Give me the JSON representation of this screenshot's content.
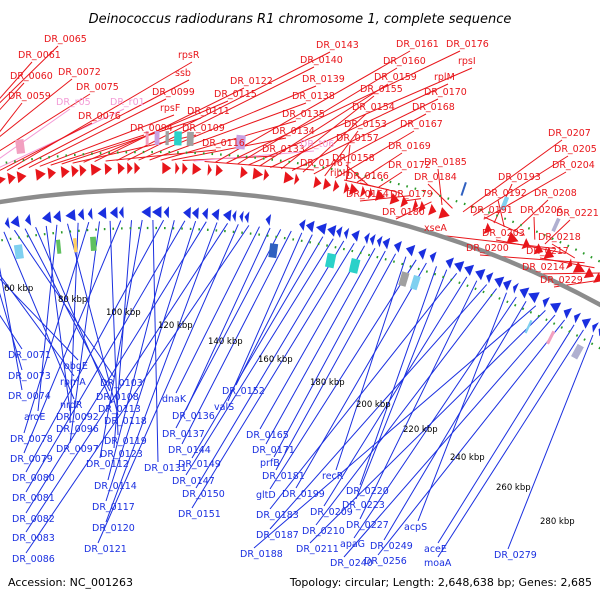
{
  "header": {
    "title": "Deinococcus radiodurans R1 chromosome 1, complete sequence"
  },
  "footer": {
    "accession": "Accession: NC_001263",
    "summary": "Topology: circular; Length: 2,648,638 bp; Genes: 2,685"
  },
  "colors": {
    "forward": "#e8161b",
    "reverse": "#1a2fe0",
    "rna": "#f39ad6",
    "backbone": "#8c8c8c",
    "tick": "#2a9a2a"
  },
  "kbp_ticks": [
    "60 kbp",
    "80 kbp",
    "100 kbp",
    "120 kbp",
    "140 kbp",
    "160 kbp",
    "180 kbp",
    "200 kbp",
    "220 kbp",
    "240 kbp",
    "260 kbp",
    "280 kbp"
  ],
  "forward_labels": [
    {
      "text": "DR_0065",
      "kind": "cds"
    },
    {
      "text": "DR_0061",
      "kind": "cds"
    },
    {
      "text": "DR_0060",
      "kind": "cds"
    },
    {
      "text": "DR_0072",
      "kind": "cds"
    },
    {
      "text": "DR_0075",
      "kind": "cds"
    },
    {
      "text": "DR_0059",
      "kind": "cds"
    },
    {
      "text": "DR_r05",
      "kind": "rna"
    },
    {
      "text": "DR_r01",
      "kind": "rna"
    },
    {
      "text": "DR_0076",
      "kind": "cds"
    },
    {
      "text": "rpsR",
      "kind": "cds"
    },
    {
      "text": "ssb",
      "kind": "cds"
    },
    {
      "text": "DR_0099",
      "kind": "cds"
    },
    {
      "text": "rpsF",
      "kind": "cds"
    },
    {
      "text": "DR_0094",
      "kind": "cds"
    },
    {
      "text": "DR_0111",
      "kind": "cds"
    },
    {
      "text": "DR_0109",
      "kind": "cds"
    },
    {
      "text": "DR_0115",
      "kind": "cds"
    },
    {
      "text": "DR_0122",
      "kind": "cds"
    },
    {
      "text": "DR_0116",
      "kind": "cds"
    },
    {
      "text": "DR_0143",
      "kind": "cds"
    },
    {
      "text": "DR_0140",
      "kind": "cds"
    },
    {
      "text": "DR_0139",
      "kind": "cds"
    },
    {
      "text": "DR_0138",
      "kind": "cds"
    },
    {
      "text": "DR_0135",
      "kind": "cds"
    },
    {
      "text": "DR_0134",
      "kind": "cds"
    },
    {
      "text": "DR_0133",
      "kind": "cds"
    },
    {
      "text": "DR_t06",
      "kind": "rna"
    },
    {
      "text": "DR_0146",
      "kind": "cds"
    },
    {
      "text": "DR_0161",
      "kind": "cds"
    },
    {
      "text": "DR_0176",
      "kind": "cds"
    },
    {
      "text": "DR_0160",
      "kind": "cds"
    },
    {
      "text": "rpsI",
      "kind": "cds"
    },
    {
      "text": "DR_0159",
      "kind": "cds"
    },
    {
      "text": "rplM",
      "kind": "cds"
    },
    {
      "text": "DR_0155",
      "kind": "cds"
    },
    {
      "text": "DR_0170",
      "kind": "cds"
    },
    {
      "text": "DR_0154",
      "kind": "cds"
    },
    {
      "text": "DR_0168",
      "kind": "cds"
    },
    {
      "text": "DR_0153",
      "kind": "cds"
    },
    {
      "text": "DR_0167",
      "kind": "cds"
    },
    {
      "text": "DR_0157",
      "kind": "cds"
    },
    {
      "text": "DR_0169",
      "kind": "cds"
    },
    {
      "text": "DR_0158",
      "kind": "cds"
    },
    {
      "text": "DR_0172",
      "kind": "cds"
    },
    {
      "text": "ribH",
      "kind": "cds"
    },
    {
      "text": "DR_0166",
      "kind": "cds"
    },
    {
      "text": "DR_0164",
      "kind": "cds"
    },
    {
      "text": "DR_0179",
      "kind": "cds"
    },
    {
      "text": "DR_0180",
      "kind": "cds"
    },
    {
      "text": "DR_0185",
      "kind": "cds"
    },
    {
      "text": "DR_0184",
      "kind": "cds"
    },
    {
      "text": "DR_0207",
      "kind": "cds"
    },
    {
      "text": "DR_0205",
      "kind": "cds"
    },
    {
      "text": "DR_0204",
      "kind": "cds"
    },
    {
      "text": "DR_0193",
      "kind": "cds"
    },
    {
      "text": "DR_0192",
      "kind": "cds"
    },
    {
      "text": "DR_0208",
      "kind": "cds"
    },
    {
      "text": "DR_0191",
      "kind": "cds"
    },
    {
      "text": "DR_0206",
      "kind": "cds"
    },
    {
      "text": "DR_0221",
      "kind": "cds"
    },
    {
      "text": "xseA",
      "kind": "cds"
    },
    {
      "text": "DR_0203",
      "kind": "cds"
    },
    {
      "text": "DR_0218",
      "kind": "cds"
    },
    {
      "text": "DR_0200",
      "kind": "cds"
    },
    {
      "text": "DR_0217",
      "kind": "cds"
    },
    {
      "text": "DR_0214",
      "kind": "cds"
    },
    {
      "text": "DR_0229",
      "kind": "cds"
    }
  ],
  "reverse_labels": [
    {
      "text": "DR_0071"
    },
    {
      "text": "obgE"
    },
    {
      "text": "rpmA"
    },
    {
      "text": "DR_0073"
    },
    {
      "text": "DR_0074"
    },
    {
      "text": "nrdR"
    },
    {
      "text": "DR_0103"
    },
    {
      "text": "DR_0108"
    },
    {
      "text": "DR_0113"
    },
    {
      "text": "DR_0092"
    },
    {
      "text": "aroE"
    },
    {
      "text": "DR_0118"
    },
    {
      "text": "DR_0096"
    },
    {
      "text": "DR_0078"
    },
    {
      "text": "DR_0097"
    },
    {
      "text": "DR_0119"
    },
    {
      "text": "DR_0079"
    },
    {
      "text": "DR_0123"
    },
    {
      "text": "DR_0112"
    },
    {
      "text": "DR_0131"
    },
    {
      "text": "DR_0080"
    },
    {
      "text": "DR_0114"
    },
    {
      "text": "DR_0081"
    },
    {
      "text": "DR_0117"
    },
    {
      "text": "DR_0082"
    },
    {
      "text": "DR_0120"
    },
    {
      "text": "DR_0083"
    },
    {
      "text": "DR_0121"
    },
    {
      "text": "DR_0086"
    },
    {
      "text": "dnaK"
    },
    {
      "text": "DR_0136"
    },
    {
      "text": "DR_0137"
    },
    {
      "text": "DR_0144"
    },
    {
      "text": "valS"
    },
    {
      "text": "DR_0152"
    },
    {
      "text": "DR_0149"
    },
    {
      "text": "DR_0147"
    },
    {
      "text": "DR_0150"
    },
    {
      "text": "DR_0151"
    },
    {
      "text": "DR_0165"
    },
    {
      "text": "DR_0171"
    },
    {
      "text": "prfB"
    },
    {
      "text": "DR_0181"
    },
    {
      "text": "recR"
    },
    {
      "text": "gltD"
    },
    {
      "text": "DR_0199"
    },
    {
      "text": "DR_0220"
    },
    {
      "text": "DR_0223"
    },
    {
      "text": "DR_0183"
    },
    {
      "text": "DR_0209"
    },
    {
      "text": "DR_0227"
    },
    {
      "text": "DR_0187"
    },
    {
      "text": "DR_0210"
    },
    {
      "text": "acpS"
    },
    {
      "text": "apaG"
    },
    {
      "text": "DR_0249"
    },
    {
      "text": "DR_0188"
    },
    {
      "text": "DR_0211"
    },
    {
      "text": "DR_0240"
    },
    {
      "text": "DR_0256"
    },
    {
      "text": "aceE"
    },
    {
      "text": "moaA"
    },
    {
      "text": "DR_0279"
    }
  ]
}
